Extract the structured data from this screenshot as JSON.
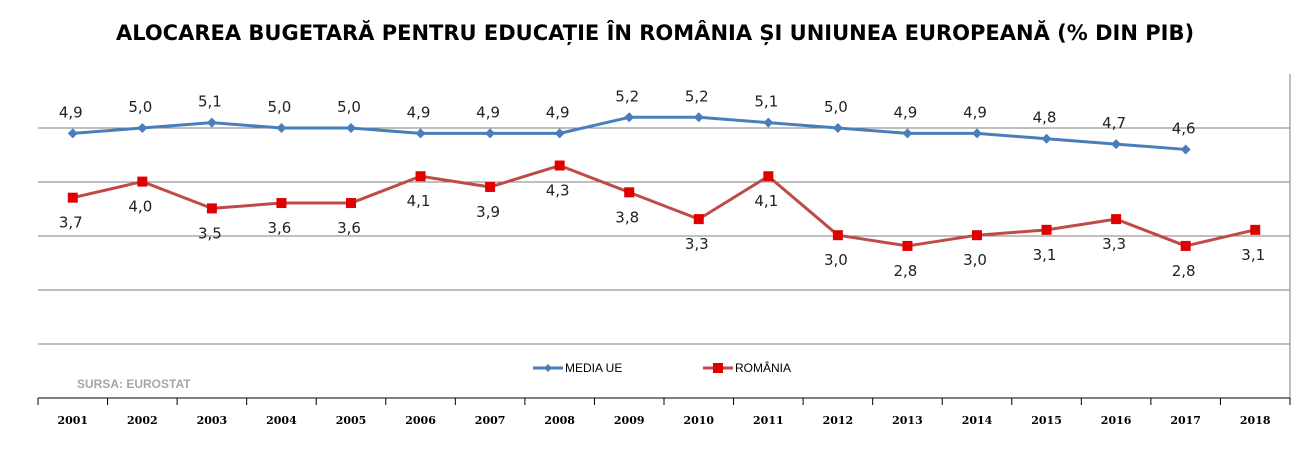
{
  "chart_data": {
    "type": "line",
    "title": "ALOCAREA BUGETARĂ PENTRU EDUCAȚIE ÎN ROMÂNIA ȘI UNIUNEA EUROPEANĂ (% DIN PIB)",
    "categories": [
      "2001",
      "2002",
      "2003",
      "2004",
      "2005",
      "2006",
      "2007",
      "2008",
      "2009",
      "2010",
      "2011",
      "2012",
      "2013",
      "2014",
      "2015",
      "2016",
      "2017",
      "2018"
    ],
    "series": [
      {
        "name": "MEDIA UE",
        "color": "#4a7ebb",
        "marker": "diamond",
        "values": [
          4.9,
          5.0,
          5.1,
          5.0,
          5.0,
          4.9,
          4.9,
          4.9,
          5.2,
          5.2,
          5.1,
          5.0,
          4.9,
          4.9,
          4.8,
          4.7,
          4.6,
          null
        ],
        "labels": [
          "4,9",
          "5,0",
          "5,1",
          "5,0",
          "5,0",
          "4,9",
          "4,9",
          "4,9",
          "5,2",
          "5,2",
          "5,1",
          "5,0",
          "4,9",
          "4,9",
          "4,8",
          "4,7",
          "4,6",
          ""
        ]
      },
      {
        "name": "ROMÂNIA",
        "color": "#be4b48",
        "marker": "square",
        "values": [
          3.7,
          4.0,
          3.5,
          3.6,
          3.6,
          4.1,
          3.9,
          4.3,
          3.8,
          3.3,
          4.1,
          3.0,
          2.8,
          3.0,
          3.1,
          3.3,
          2.8,
          3.1
        ],
        "labels": [
          "3,7",
          "4,0",
          "3,5",
          "3,6",
          "3,6",
          "4,1",
          "3,9",
          "4,3",
          "3,8",
          "3,3",
          "4,1",
          "3,0",
          "2,8",
          "3,0",
          "3,1",
          "3,3",
          "2,8",
          "3,1"
        ]
      }
    ],
    "legend": "bottom-center",
    "grid": true
  },
  "source_note": "SURSA: EUROSTAT"
}
